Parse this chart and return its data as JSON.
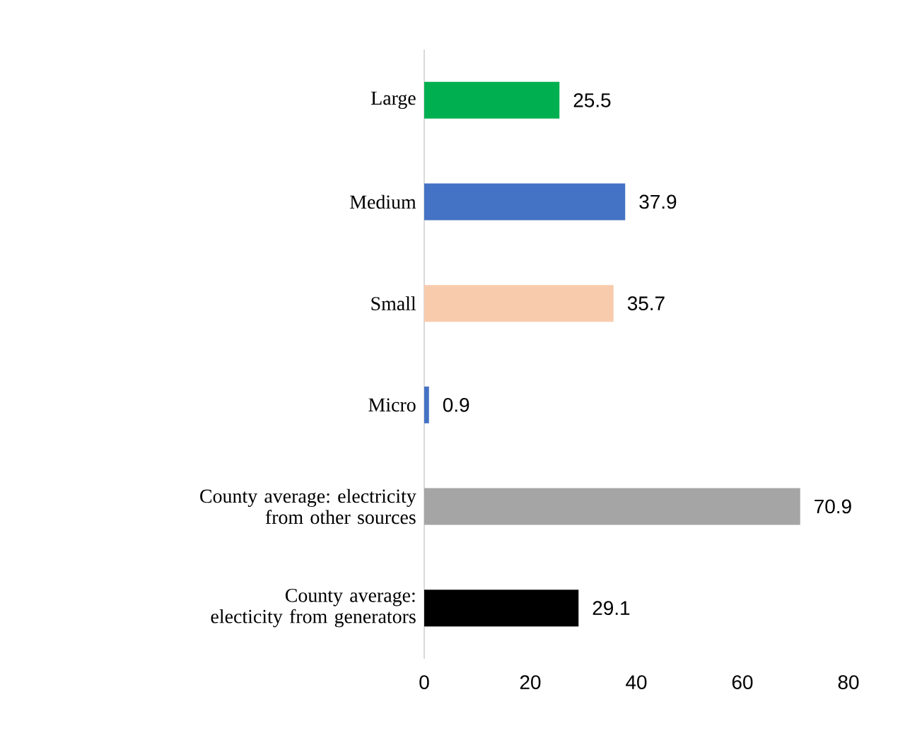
{
  "chart_data": {
    "type": "bar",
    "orientation": "horizontal",
    "categories": [
      "Large",
      "Medium",
      "Small",
      "Micro",
      "County average: electricity from other sources",
      "County average: electicity from generators"
    ],
    "values": [
      25.5,
      37.9,
      35.7,
      0.9,
      70.9,
      29.1
    ],
    "colors": [
      "#00b050",
      "#4472c4",
      "#f8cbad",
      "#4472c4",
      "#a5a5a5",
      "#000000"
    ],
    "xlim": [
      0,
      80
    ],
    "xticks": [
      0,
      20,
      40,
      60,
      80
    ],
    "data_labels": true,
    "grid": false
  }
}
